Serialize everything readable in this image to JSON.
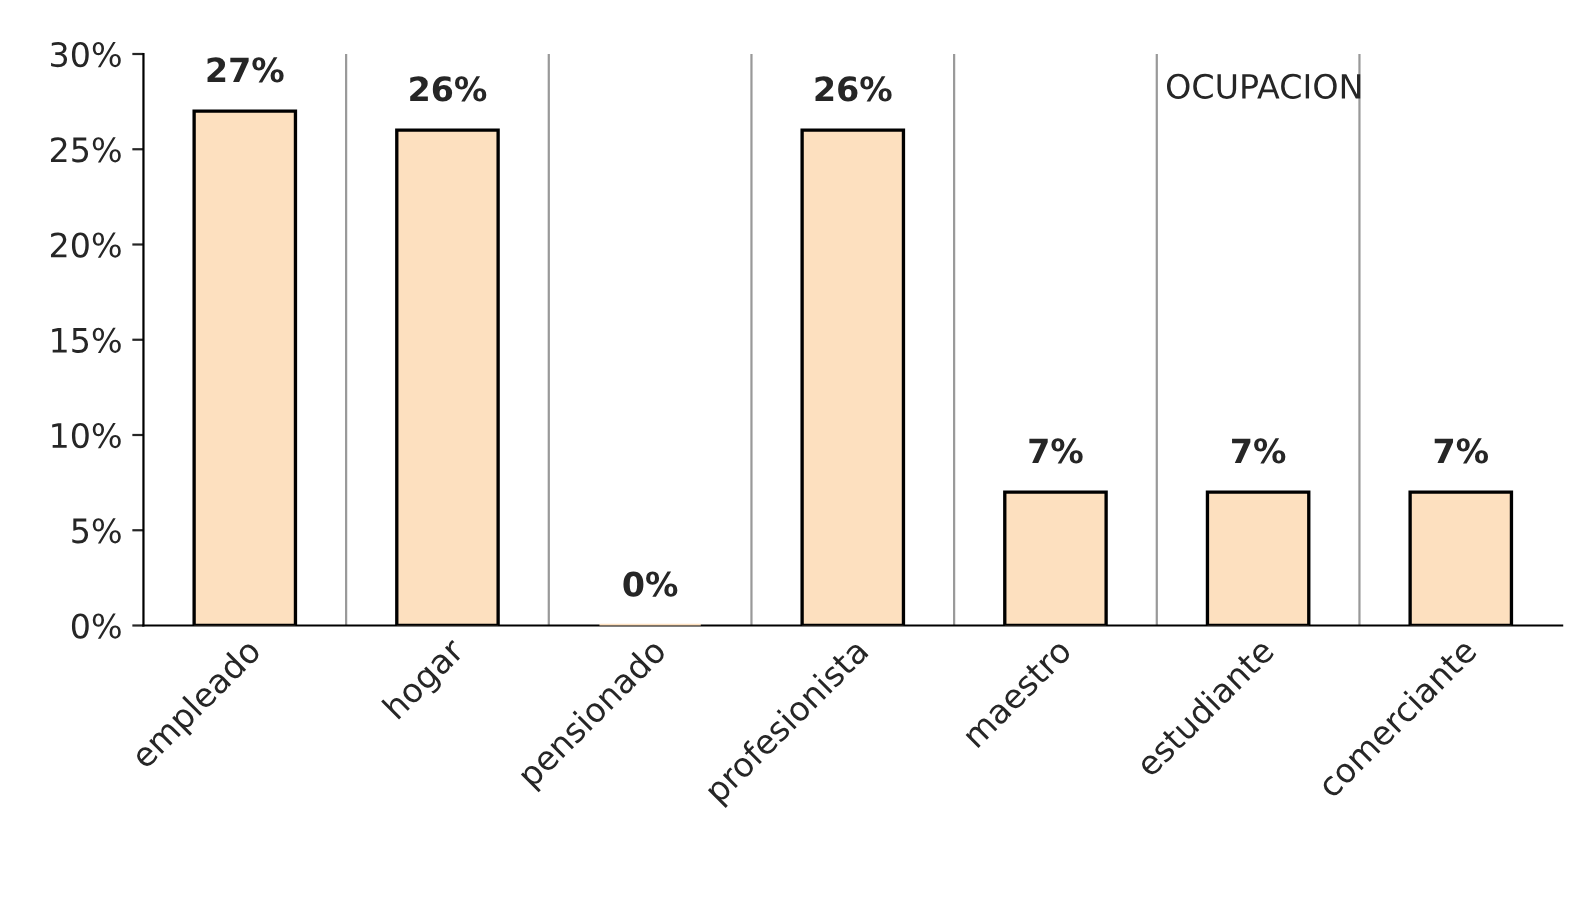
{
  "chart_data": {
    "type": "bar",
    "title": "OCUPACION",
    "categories": [
      "empleado",
      "hogar",
      "pensionado",
      "profesionista",
      "maestro",
      "estudiante",
      "comerciante"
    ],
    "values": [
      27,
      26,
      0,
      26,
      7,
      7,
      7
    ],
    "value_labels": [
      "27%",
      "26%",
      "0%",
      "26%",
      "7%",
      "7%",
      "7%"
    ],
    "color": "#fde0bf",
    "ylim": [
      0,
      30
    ],
    "yticks": [
      {
        "value": 0,
        "label": "0%"
      },
      {
        "value": 5,
        "label": "5%"
      },
      {
        "value": 10,
        "label": "10%"
      },
      {
        "value": 15,
        "label": "15%"
      },
      {
        "value": 20,
        "label": "20%"
      },
      {
        "value": 25,
        "label": "25%"
      },
      {
        "value": 30,
        "label": "30%"
      }
    ],
    "grid": "x"
  }
}
